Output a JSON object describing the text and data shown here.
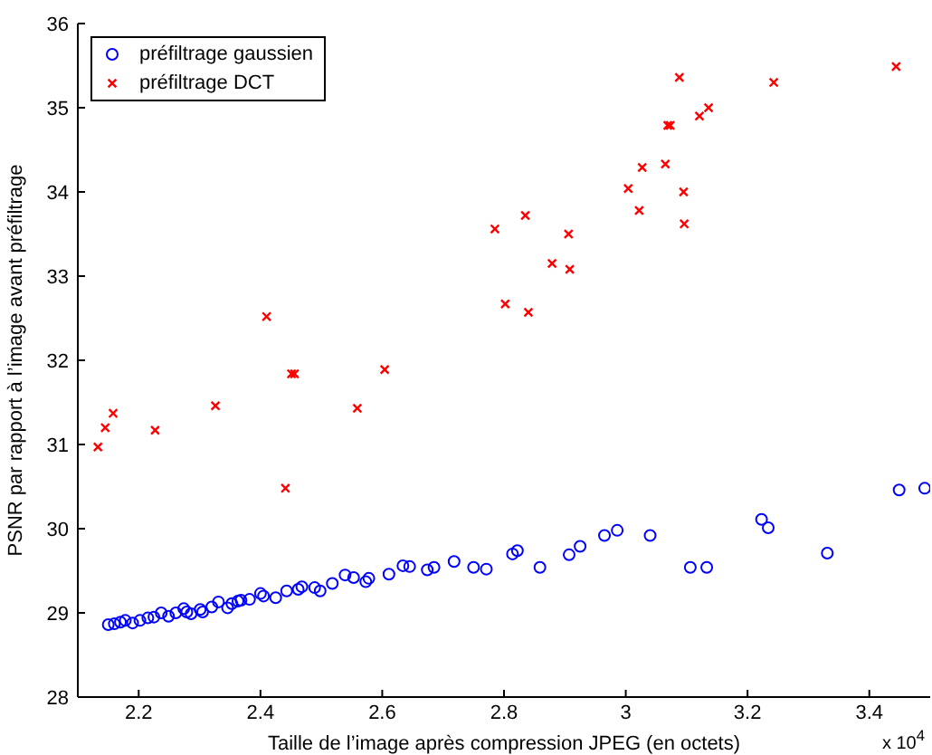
{
  "chart_data": {
    "type": "scatter",
    "xlabel": "Taille de l’image après compression JPEG (en octets)",
    "ylabel": "PSNR par rapport à l’image avant préfiltrage",
    "annotations": [
      "x 10$^{4}$"
    ],
    "xlim": [
      2.1,
      3.5
    ],
    "xticks": [
      2.2,
      2.4,
      2.6,
      2.8,
      3,
      3.2,
      3.4
    ],
    "ylim": [
      28,
      36
    ],
    "yticks": [
      28,
      29,
      30,
      31,
      32,
      33,
      34,
      35,
      36
    ],
    "grid": false,
    "legend": "top left",
    "series": [
      {
        "name": "préfiltrage gaussien",
        "color": "#0000ff",
        "marker": "circle",
        "x": [
          2.15,
          2.16,
          2.17,
          2.178,
          2.19,
          2.202,
          2.215,
          2.225,
          2.237,
          2.249,
          2.261,
          2.274,
          2.279,
          2.286,
          2.301,
          2.305,
          2.32,
          2.331,
          2.346,
          2.353,
          2.363,
          2.368,
          2.382,
          2.4,
          2.405,
          2.425,
          2.443,
          2.462,
          2.468,
          2.489,
          2.498,
          2.518,
          2.539,
          2.553,
          2.573,
          2.578,
          2.611,
          2.634,
          2.645,
          2.674,
          2.685,
          2.718,
          2.75,
          2.771,
          2.814,
          2.822,
          2.859,
          2.907,
          2.925,
          2.965,
          2.986,
          3.04,
          3.106,
          3.133,
          3.223,
          3.234,
          3.331,
          3.449,
          3.491
        ],
        "values": [
          28.86,
          28.87,
          28.89,
          28.91,
          28.88,
          28.91,
          28.94,
          28.95,
          29.0,
          28.96,
          29.0,
          29.05,
          29.01,
          28.99,
          29.04,
          29.01,
          29.07,
          29.13,
          29.06,
          29.11,
          29.14,
          29.15,
          29.16,
          29.23,
          29.2,
          29.18,
          29.26,
          29.28,
          29.31,
          29.3,
          29.26,
          29.35,
          29.45,
          29.42,
          29.37,
          29.41,
          29.46,
          29.56,
          29.55,
          29.51,
          29.54,
          29.61,
          29.54,
          29.52,
          29.7,
          29.74,
          29.54,
          29.69,
          29.79,
          29.92,
          29.98,
          29.92,
          29.54,
          29.54,
          30.11,
          30.01,
          29.71,
          30.46,
          30.48
        ]
      },
      {
        "name": "préfiltrage DCT",
        "color": "#ff0000",
        "marker": "cross",
        "x": [
          2.133,
          2.145,
          2.158,
          2.227,
          2.326,
          2.41,
          2.441,
          2.451,
          2.456,
          2.559,
          2.604,
          2.785,
          2.802,
          2.835,
          2.84,
          2.879,
          2.906,
          2.908,
          3.004,
          3.022,
          3.027,
          3.065,
          3.069,
          3.073,
          3.088,
          3.095,
          3.096,
          3.121,
          3.136,
          3.243,
          3.444
        ],
        "values": [
          30.97,
          31.2,
          31.37,
          31.17,
          31.46,
          32.52,
          30.48,
          31.84,
          31.84,
          31.43,
          31.89,
          33.56,
          32.67,
          33.72,
          32.57,
          33.15,
          33.5,
          33.08,
          34.04,
          33.78,
          34.29,
          34.33,
          34.79,
          34.79,
          35.36,
          34.0,
          33.62,
          34.9,
          35.0,
          35.3,
          35.49
        ]
      }
    ]
  }
}
